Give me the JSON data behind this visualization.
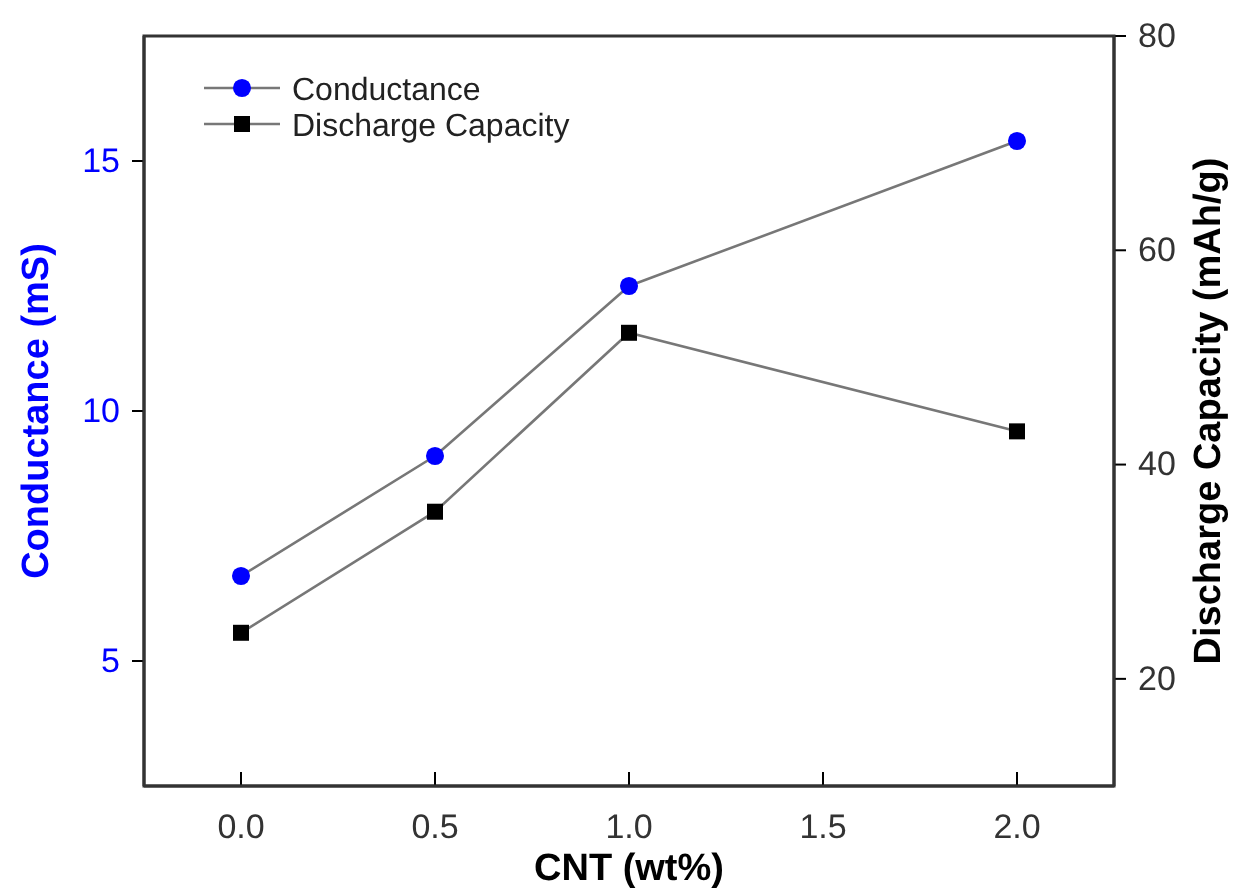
{
  "chart_data": {
    "type": "line",
    "xlabel": "CNT (wt%)",
    "ylabel": "Conductance (mS)",
    "y2label": "Discharge Capacity (mAh/g)",
    "x": [
      0,
      0.5,
      1,
      2
    ],
    "series": [
      {
        "name": "Conductance",
        "color": "#0000ff",
        "marker": "circle",
        "values": [
          6.7,
          9.1,
          12.5,
          15.4
        ]
      },
      {
        "name": "Discharge Capacity",
        "color": "#000000",
        "marker": "square",
        "axis": "y2",
        "values": [
          24.3,
          35.6,
          52.3,
          43.1
        ]
      }
    ],
    "xlim": [
      -0.25,
      2.25
    ],
    "xticks": [
      {
        "value": 0,
        "label": "0.0"
      },
      {
        "value": 0.5,
        "label": "0.5"
      },
      {
        "value": 1,
        "label": "1.0"
      },
      {
        "value": 1.5,
        "label": "1.5"
      },
      {
        "value": 2,
        "label": "2.0"
      }
    ],
    "ylim": [
      2.5,
      17.5
    ],
    "yticks": [
      5,
      10,
      15
    ],
    "y2lim": [
      10,
      80
    ],
    "y2ticks": [
      20,
      40,
      60,
      80
    ],
    "legend": "top left",
    "grid": false,
    "line_style": "solid"
  }
}
